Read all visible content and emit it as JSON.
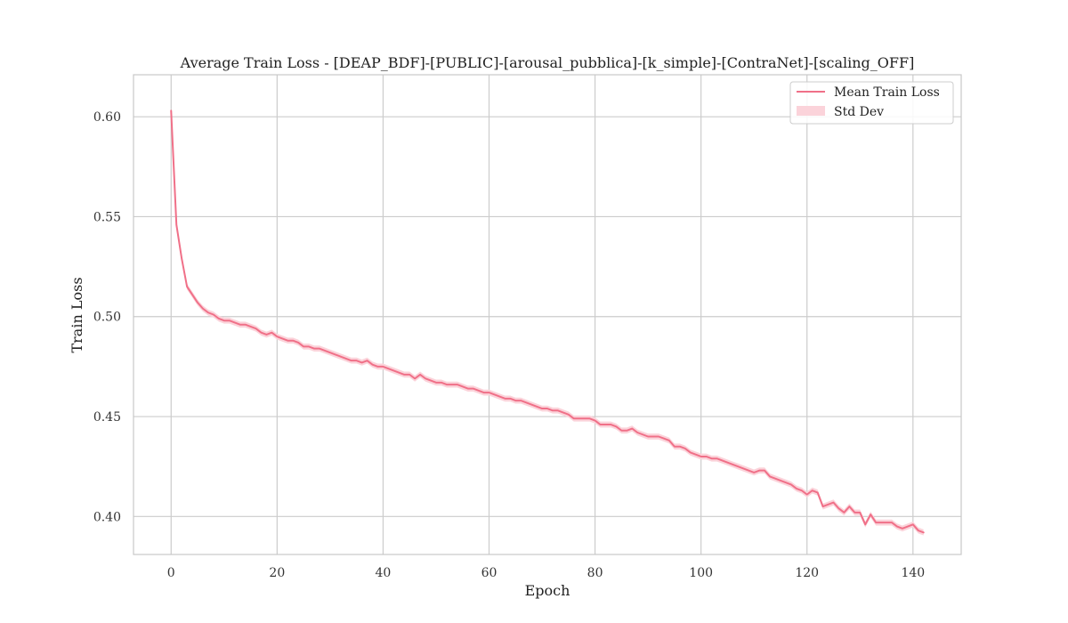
{
  "chart_data": {
    "type": "line",
    "title": "Average Train Loss - [DEAP_BDF]-[PUBLIC]-[arousal_pubblica]-[k_simple]-[ContraNet]-[scaling_OFF]",
    "xlabel": "Epoch",
    "ylabel": "Train Loss",
    "xlim": [
      -7.1,
      149.1
    ],
    "ylim": [
      0.381,
      0.621
    ],
    "xticks": [
      0,
      20,
      40,
      60,
      80,
      100,
      120,
      140
    ],
    "xtick_labels": [
      "0",
      "20",
      "40",
      "60",
      "80",
      "100",
      "120",
      "140"
    ],
    "yticks": [
      0.4,
      0.45,
      0.5,
      0.55,
      0.6
    ],
    "ytick_labels": [
      "0.40",
      "0.45",
      "0.50",
      "0.55",
      "0.60"
    ],
    "grid": true,
    "legend_position": "top-right",
    "colors": {
      "line": "#f07088",
      "band": "#fbd3da",
      "grid": "#cccccc",
      "frame": "#c8c8c8"
    },
    "series": [
      {
        "name": "Mean Train Loss",
        "x": [
          0,
          1,
          2,
          3,
          4,
          5,
          6,
          7,
          8,
          9,
          10,
          11,
          12,
          13,
          14,
          15,
          16,
          17,
          18,
          19,
          20,
          21,
          22,
          23,
          24,
          25,
          26,
          27,
          28,
          29,
          30,
          31,
          32,
          33,
          34,
          35,
          36,
          37,
          38,
          39,
          40,
          41,
          42,
          43,
          44,
          45,
          46,
          47,
          48,
          49,
          50,
          51,
          52,
          53,
          54,
          55,
          56,
          57,
          58,
          59,
          60,
          61,
          62,
          63,
          64,
          65,
          66,
          67,
          68,
          69,
          70,
          71,
          72,
          73,
          74,
          75,
          76,
          77,
          78,
          79,
          80,
          81,
          82,
          83,
          84,
          85,
          86,
          87,
          88,
          89,
          90,
          91,
          92,
          93,
          94,
          95,
          96,
          97,
          98,
          99,
          100,
          101,
          102,
          103,
          104,
          105,
          106,
          107,
          108,
          109,
          110,
          111,
          112,
          113,
          114,
          115,
          116,
          117,
          118,
          119,
          120,
          121,
          122,
          123,
          124,
          125,
          126,
          127,
          128,
          129,
          130,
          131,
          132,
          133,
          134,
          135,
          136,
          137,
          138,
          139,
          140,
          141,
          142
        ],
        "y": [
          0.603,
          0.546,
          0.529,
          0.515,
          0.511,
          0.507,
          0.504,
          0.502,
          0.501,
          0.499,
          0.498,
          0.498,
          0.497,
          0.496,
          0.496,
          0.495,
          0.494,
          0.492,
          0.491,
          0.492,
          0.49,
          0.489,
          0.488,
          0.488,
          0.487,
          0.485,
          0.485,
          0.484,
          0.484,
          0.483,
          0.482,
          0.481,
          0.48,
          0.479,
          0.478,
          0.478,
          0.477,
          0.478,
          0.476,
          0.475,
          0.475,
          0.474,
          0.473,
          0.472,
          0.471,
          0.471,
          0.469,
          0.471,
          0.469,
          0.468,
          0.467,
          0.467,
          0.466,
          0.466,
          0.466,
          0.465,
          0.464,
          0.464,
          0.463,
          0.462,
          0.462,
          0.461,
          0.46,
          0.459,
          0.459,
          0.458,
          0.458,
          0.457,
          0.456,
          0.455,
          0.454,
          0.454,
          0.453,
          0.453,
          0.452,
          0.451,
          0.449,
          0.449,
          0.449,
          0.449,
          0.448,
          0.446,
          0.446,
          0.446,
          0.445,
          0.443,
          0.443,
          0.444,
          0.442,
          0.441,
          0.44,
          0.44,
          0.44,
          0.439,
          0.438,
          0.435,
          0.435,
          0.434,
          0.432,
          0.431,
          0.43,
          0.43,
          0.429,
          0.429,
          0.428,
          0.427,
          0.426,
          0.425,
          0.424,
          0.423,
          0.422,
          0.423,
          0.423,
          0.42,
          0.419,
          0.418,
          0.417,
          0.416,
          0.414,
          0.413,
          0.411,
          0.413,
          0.412,
          0.405,
          0.406,
          0.407,
          0.404,
          0.402,
          0.405,
          0.402,
          0.402,
          0.396,
          0.401,
          0.397,
          0.397,
          0.397,
          0.397,
          0.395,
          0.394,
          0.395,
          0.396,
          0.393,
          0.392
        ]
      },
      {
        "name": "Std Dev",
        "type": "band",
        "std": 0.0015
      }
    ]
  }
}
